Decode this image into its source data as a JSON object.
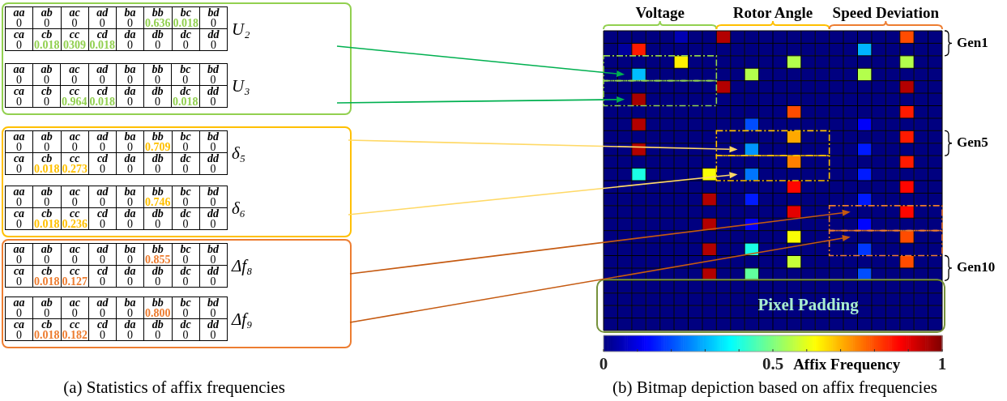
{
  "chart_data": [
    {
      "type": "other",
      "title": "(a) Statistics of affix frequencies",
      "colors": [
        "#92d050",
        "#92d050",
        "#ffc000",
        "#ffc000",
        "#ed7d31",
        "#ed7d31"
      ],
      "annotations": [
        "U₂",
        "aa",
        "ab",
        "ac",
        "ad",
        "ba",
        "bb",
        "bc",
        "bd",
        "0",
        "0",
        "0",
        "0",
        "0",
        "0.636",
        "0.018",
        "0",
        "ca",
        "cb",
        "cc",
        "cd",
        "da",
        "db",
        "dc",
        "dd",
        "0",
        "0.018",
        "0309",
        "0.018",
        "0",
        "0",
        "0",
        "0",
        "U₃",
        "aa",
        "ab",
        "ac",
        "ad",
        "ba",
        "bb",
        "bc",
        "bd",
        "0",
        "0",
        "0",
        "0",
        "0",
        "0",
        "0",
        "0",
        "ca",
        "cb",
        "cc",
        "cd",
        "da",
        "db",
        "dc",
        "dd",
        "0",
        "0",
        "0.964",
        "0.018",
        "0",
        "0",
        "0.018",
        "0",
        "δ₅",
        "aa",
        "ab",
        "ac",
        "ad",
        "ba",
        "bb",
        "bc",
        "bd",
        "0",
        "0",
        "0",
        "0",
        "0",
        "0.709",
        "0",
        "0",
        "ca",
        "cb",
        "cc",
        "cd",
        "da",
        "db",
        "dc",
        "dd",
        "0",
        "0.018",
        "0.273",
        "0",
        "0",
        "0",
        "0",
        "0",
        "δ₆",
        "aa",
        "ab",
        "ac",
        "ad",
        "ba",
        "bb",
        "bc",
        "bd",
        "0",
        "0",
        "0",
        "0",
        "0",
        "0.746",
        "0",
        "0",
        "ca",
        "cb",
        "cc",
        "cd",
        "da",
        "db",
        "dc",
        "dd",
        "0",
        "0.018",
        "0.236",
        "0",
        "0",
        "0",
        "0",
        "0",
        "Δf₈",
        "aa",
        "ab",
        "ac",
        "ad",
        "ba",
        "bb",
        "bc",
        "bd",
        "0",
        "0",
        "0",
        "0",
        "0",
        "0.855",
        "0",
        "0",
        "ca",
        "cb",
        "cc",
        "cd",
        "da",
        "db",
        "dc",
        "dd",
        "0",
        "0.018",
        "0.127",
        "0",
        "0",
        "0",
        "0",
        "0",
        "Δf₉",
        "aa",
        "ab",
        "ac",
        "ad",
        "ba",
        "bb",
        "bc",
        "bd",
        "0",
        "0",
        "0",
        "0",
        "0",
        "0.800",
        "0",
        "0",
        "ca",
        "cb",
        "cc",
        "cd",
        "da",
        "db",
        "dc",
        "dd",
        "0",
        "0.018",
        "0.182",
        "0",
        "0",
        "0",
        "0",
        "0"
      ]
    },
    {
      "type": "heatmap",
      "title": "(b) Bitmap depiction based on affix frequencies",
      "clabel": "Affix Frequency",
      "annotations": [
        "Voltage",
        "Rotor Angle",
        "Speed Deviation",
        "Gen1",
        "Gen5",
        "Gen10",
        "Pixel Padding"
      ],
      "categories": [
        null,
        null,
        null,
        null,
        null,
        null,
        null,
        null,
        null,
        null,
        null,
        null,
        null,
        null,
        null,
        null,
        null,
        null,
        null,
        null,
        null,
        null,
        null,
        null
      ],
      "y_categories": [
        null,
        null,
        null,
        null,
        null,
        null,
        null,
        null,
        null,
        null,
        null,
        null,
        null,
        null,
        null,
        null,
        null,
        null,
        null,
        null,
        null,
        null,
        null,
        null
      ],
      "clim": [
        0,
        1
      ],
      "grid": true,
      "cticks": [
        0,
        {
          "value": 0.1,
          "label": null
        },
        {
          "value": 0.2,
          "label": null
        },
        {
          "value": 0.3,
          "label": null
        },
        {
          "value": 0.4,
          "label": null
        },
        0.5,
        {
          "value": 0.6,
          "label": null
        },
        {
          "value": 0.7,
          "label": null
        },
        {
          "value": 0.8,
          "label": null
        },
        {
          "value": 0.9,
          "label": null
        },
        1
      ],
      "cells": [
        [
          0,
          0,
          0,
          0,
          0,
          0.05,
          0,
          0,
          0.95,
          0,
          0,
          0,
          0,
          0,
          0,
          0,
          0,
          0,
          0,
          0,
          0,
          0.8,
          0,
          0
        ],
        [
          0,
          0.03,
          0.85,
          0,
          0,
          0,
          0,
          0,
          0,
          0,
          0,
          0,
          0,
          0,
          0,
          0,
          0,
          0,
          0.3,
          0,
          0,
          0,
          0,
          0
        ],
        [
          0,
          0,
          0,
          0,
          0,
          0.64,
          0,
          0,
          0,
          0,
          0,
          0,
          0,
          0.55,
          0,
          0,
          0,
          0,
          0,
          0,
          0,
          0.55,
          0,
          0
        ],
        [
          0,
          0,
          0.31,
          0,
          0,
          0,
          0,
          0,
          0,
          0,
          0.55,
          0,
          0,
          0,
          0,
          0,
          0,
          0,
          0.55,
          0,
          0,
          0,
          0,
          0
        ],
        [
          0,
          0,
          0,
          0,
          0,
          0,
          0,
          0,
          0.95,
          0,
          0,
          0,
          0,
          0,
          0,
          0,
          0,
          0,
          0,
          0,
          0,
          0.95,
          0,
          0
        ],
        [
          0,
          0,
          0.96,
          0,
          0,
          0,
          0,
          0,
          0,
          0,
          0,
          0,
          0,
          0,
          0,
          0,
          0,
          0,
          0,
          0,
          0,
          0,
          0,
          0
        ],
        [
          0,
          0,
          0,
          0,
          0,
          0,
          0,
          0,
          0,
          0,
          0,
          0,
          0,
          0.8,
          0,
          0,
          0,
          0,
          0,
          0,
          0,
          0.85,
          0,
          0
        ],
        [
          0,
          0,
          0.95,
          0,
          0,
          0,
          0,
          0,
          0,
          0,
          0.2,
          0,
          0,
          0,
          0,
          0,
          0,
          0,
          0.12,
          0,
          0,
          0,
          0,
          0
        ],
        [
          0,
          0,
          0,
          0,
          0,
          0,
          0,
          0,
          0,
          0,
          0,
          0,
          0,
          0.71,
          0,
          0,
          0,
          0,
          0,
          0,
          0,
          0.85,
          0,
          0
        ],
        [
          0,
          0,
          0.95,
          0,
          0,
          0,
          0,
          0,
          0,
          0,
          0.27,
          0,
          0,
          0,
          0,
          0,
          0,
          0,
          0.15,
          0,
          0,
          0,
          0,
          0
        ],
        [
          0,
          0,
          0,
          0,
          0,
          0,
          0,
          0,
          0,
          0,
          0,
          0,
          0,
          0.75,
          0,
          0,
          0,
          0,
          0,
          0,
          0,
          0.85,
          0,
          0
        ],
        [
          0,
          0,
          0.4,
          0,
          0,
          0,
          0,
          0.62,
          0,
          0,
          0.24,
          0,
          0,
          0,
          0,
          0,
          0,
          0,
          0.15,
          0,
          0,
          0,
          0,
          0
        ],
        [
          0,
          0,
          0,
          0,
          0,
          0,
          0,
          0,
          0,
          0,
          0,
          0,
          0,
          0.87,
          0,
          0,
          0,
          0,
          0,
          0,
          0,
          0.87,
          0,
          0
        ],
        [
          0,
          0,
          0,
          0,
          0,
          0,
          0,
          0.95,
          0,
          0,
          0.15,
          0,
          0,
          0,
          0,
          0,
          0,
          0,
          0.15,
          0,
          0,
          0,
          0,
          0
        ],
        [
          0,
          0,
          0,
          0,
          0,
          0,
          0,
          0,
          0,
          0,
          0,
          0,
          0,
          0.9,
          0,
          0,
          0,
          0,
          0,
          0,
          0,
          0.87,
          0,
          0
        ],
        [
          0,
          0,
          0,
          0,
          0,
          0,
          0,
          0.95,
          0,
          0,
          0.12,
          0,
          0,
          0,
          0,
          0,
          0,
          0,
          0.13,
          0,
          0,
          0,
          0,
          0
        ],
        [
          0,
          0,
          0,
          0,
          0,
          0,
          0,
          0,
          0,
          0,
          0,
          0,
          0,
          0.62,
          0,
          0,
          0,
          0,
          0,
          0,
          0,
          0.8,
          0,
          0
        ],
        [
          0,
          0,
          0,
          0,
          0,
          0,
          0,
          0.95,
          0,
          0,
          0.4,
          0,
          0,
          0,
          0,
          0,
          0,
          0,
          0.18,
          0,
          0,
          0,
          0,
          0
        ],
        [
          0,
          0,
          0,
          0,
          0,
          0,
          0,
          0,
          0,
          0,
          0,
          0,
          0,
          0.57,
          0,
          0,
          0,
          0,
          0,
          0,
          0,
          0.8,
          0,
          0
        ],
        [
          0,
          0,
          0,
          0,
          0,
          0,
          0,
          0.95,
          0,
          0,
          0.47,
          0,
          0,
          0,
          0,
          0,
          0,
          0,
          0.2,
          0,
          0,
          0,
          0,
          0
        ],
        [
          0,
          0,
          0,
          0,
          0,
          0,
          0,
          0,
          0,
          0,
          0,
          0,
          0,
          0,
          0,
          0,
          0,
          0,
          0,
          0,
          0,
          0,
          0,
          0
        ],
        [
          0,
          0,
          0,
          0,
          0,
          0,
          0,
          0,
          0,
          0,
          0,
          0,
          0,
          0,
          0,
          0,
          0,
          0,
          0,
          0,
          0,
          0,
          0,
          0
        ],
        [
          0,
          0,
          0,
          0,
          0,
          0,
          0,
          0,
          0,
          0,
          0,
          0,
          0,
          0,
          0,
          0,
          0,
          0,
          0,
          0,
          0,
          0,
          0,
          0
        ],
        [
          0,
          0,
          0,
          0,
          0,
          0,
          0,
          0,
          0,
          0,
          0,
          0,
          0,
          0,
          0,
          0,
          0,
          0,
          0,
          0,
          0,
          0,
          0,
          0
        ]
      ]
    }
  ]
}
